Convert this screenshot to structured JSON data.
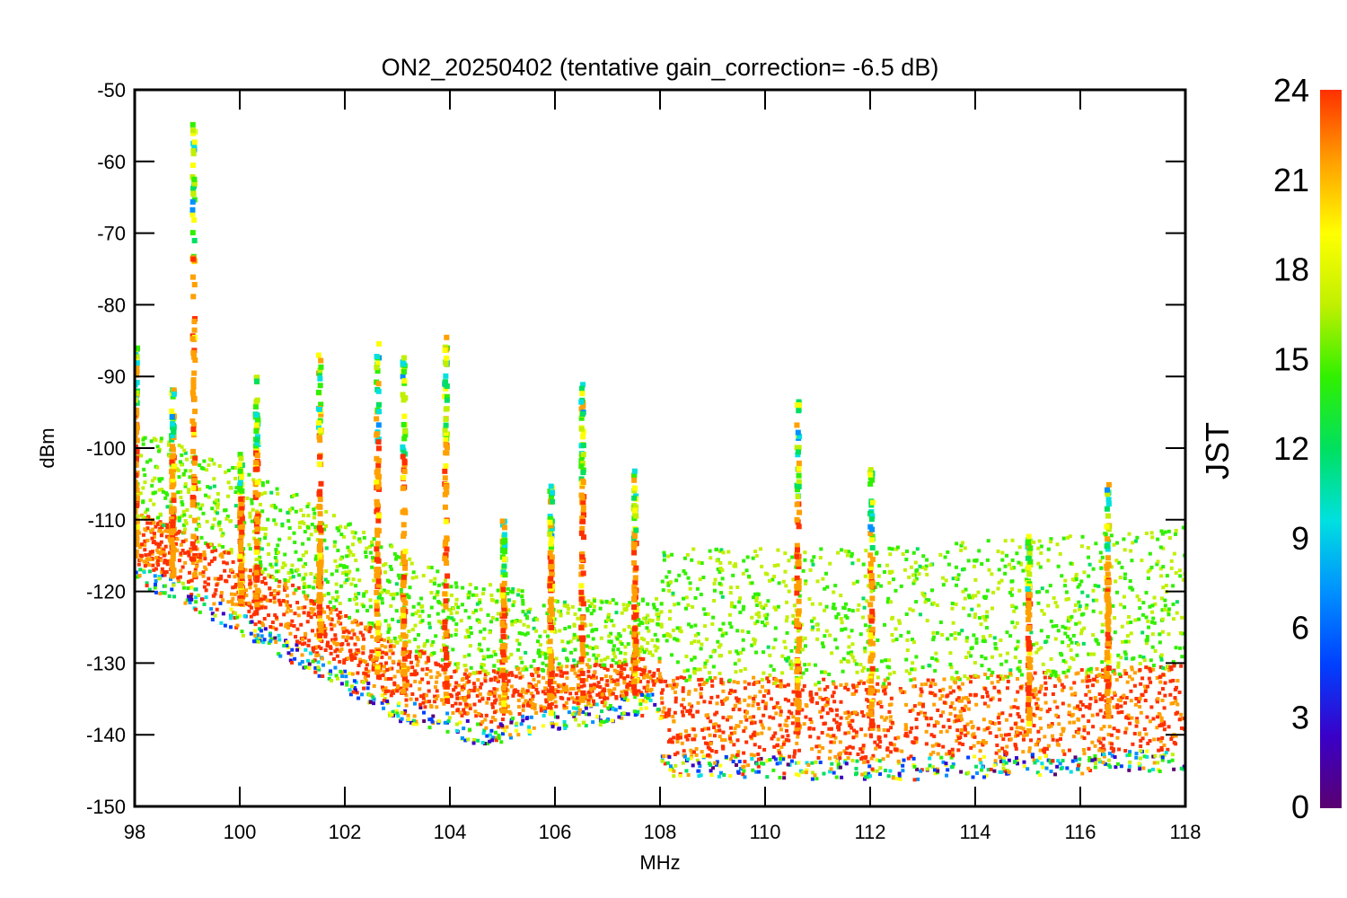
{
  "chart_data": {
    "type": "scatter",
    "title": "ON2_20250402 (tentative gain_correction= -6.5 dB)",
    "xlabel": "MHz",
    "ylabel": "dBm",
    "xlim": [
      98,
      118
    ],
    "ylim": [
      -150,
      -50
    ],
    "x_ticks": [
      "98",
      "100",
      "102",
      "104",
      "106",
      "108",
      "110",
      "112",
      "114",
      "116",
      "118"
    ],
    "y_ticks": [
      "-50",
      "-60",
      "-70",
      "-80",
      "-90",
      "-100",
      "-110",
      "-120",
      "-130",
      "-140",
      "-150"
    ],
    "colorbar": {
      "label": "JST",
      "range": [
        0,
        24
      ],
      "ticks": [
        "0",
        "3",
        "6",
        "9",
        "12",
        "15",
        "18",
        "21",
        "24"
      ],
      "colormap": [
        "#5a0070",
        "#3a00c8",
        "#0040ff",
        "#0090ff",
        "#00e0e0",
        "#00e060",
        "#30f000",
        "#c0f000",
        "#ffff00",
        "#ffa000",
        "#ff3000"
      ]
    },
    "grid": false,
    "series": [
      {
        "x": [
          98.0,
          99.0,
          100.0,
          101.0,
          102.0,
          102.5,
          103.0,
          103.5,
          104.0,
          104.5,
          105.0,
          105.5,
          106.0,
          106.5,
          107.0,
          107.5,
          108.0,
          108.05,
          110.0,
          112.0,
          114.0,
          116.0,
          118.0
        ],
        "noise_floor_min": [
          -116,
          -119,
          -123,
          -127,
          -131,
          -133,
          -135,
          -136,
          -137,
          -138.5,
          -138,
          -137,
          -136.5,
          -136,
          -135.5,
          -134.5,
          -134,
          -143,
          -143,
          -143.5,
          -143,
          -142.5,
          -142
        ],
        "spread_top": [
          -97,
          -100,
          -103,
          -106,
          -110,
          -112,
          -114,
          -116,
          -118,
          -119,
          -119,
          -120,
          -121,
          -121,
          -121,
          -121,
          -121,
          -114,
          -114,
          -114,
          -113,
          -112,
          -111
        ]
      },
      {
        "peaks": [
          {
            "x": 98.0,
            "top": -86,
            "base": -115
          },
          {
            "x": 98.7,
            "top": -91,
            "base": -118
          },
          {
            "x": 99.1,
            "top": -54,
            "base": -119
          },
          {
            "x": 100.0,
            "top": -100,
            "base": -122
          },
          {
            "x": 100.3,
            "top": -90,
            "base": -123
          },
          {
            "x": 101.5,
            "top": -86,
            "base": -127
          },
          {
            "x": 102.6,
            "top": -85,
            "base": -132
          },
          {
            "x": 103.1,
            "top": -87,
            "base": -134
          },
          {
            "x": 103.9,
            "top": -84,
            "base": -136
          },
          {
            "x": 105.0,
            "top": -110,
            "base": -137
          },
          {
            "x": 105.9,
            "top": -105,
            "base": -137
          },
          {
            "x": 106.5,
            "top": -91,
            "base": -136
          },
          {
            "x": 107.5,
            "top": -103,
            "base": -135
          },
          {
            "x": 110.6,
            "top": -93,
            "base": -140
          },
          {
            "x": 112.0,
            "top": -103,
            "base": -140
          },
          {
            "x": 115.0,
            "top": -112,
            "base": -140
          },
          {
            "x": 116.5,
            "top": -105,
            "base": -138
          }
        ]
      }
    ]
  }
}
